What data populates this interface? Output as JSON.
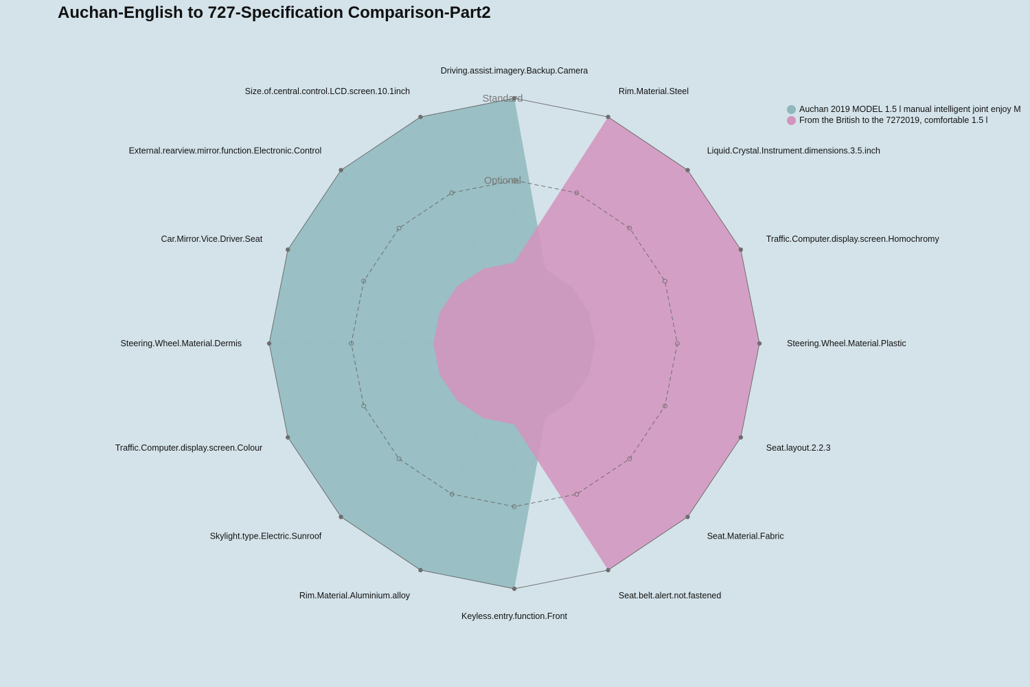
{
  "chart_data": {
    "type": "radar",
    "title": "Auchan-English to 727-Specification Comparison-Part2",
    "levels": [
      "Standard",
      "Optional"
    ],
    "axes": [
      "Driving.assist.imagery.Backup.Camera",
      "Rim.Material.Steel",
      "Liquid.Crystal.Instrument.dimensions.3.5.inch",
      "Traffic.Computer.display.screen.Homochromy",
      "Steering.Wheel.Material.Plastic",
      "Seat.layout.2.2.3",
      "Seat.Material.Fabric",
      "Seat.belt.alert.not.fastened",
      "Keyless.entry.function.Front",
      "Rim.Material.Aluminium.alloy",
      "Skylight.type.Electric.Sunroof",
      "Traffic.Computer.display.screen.Colour",
      "Steering.Wheel.Material.Dermis",
      "Car.Mirror.Vice.Driver.Seat",
      "External.rearview.mirror.function.Electronic.Control",
      "Size.of.central.control.LCD.screen.10.1inch"
    ],
    "series": [
      {
        "name": "Auchan 2019 MODEL 1.5 l manual intelligent joint enjoy M",
        "color": "#8fb8bd",
        "values": [
          1,
          0,
          0,
          0,
          0,
          0,
          0,
          0,
          1,
          1,
          1,
          1,
          1,
          1,
          1,
          1
        ]
      },
      {
        "name": "From the British to the 7272019, comfortable 1.5 l",
        "color": "#d393bd",
        "values": [
          0,
          1,
          1,
          1,
          1,
          1,
          1,
          1,
          0,
          0,
          0,
          0,
          0,
          0,
          0,
          0
        ]
      }
    ],
    "legend_position": "top-right"
  }
}
